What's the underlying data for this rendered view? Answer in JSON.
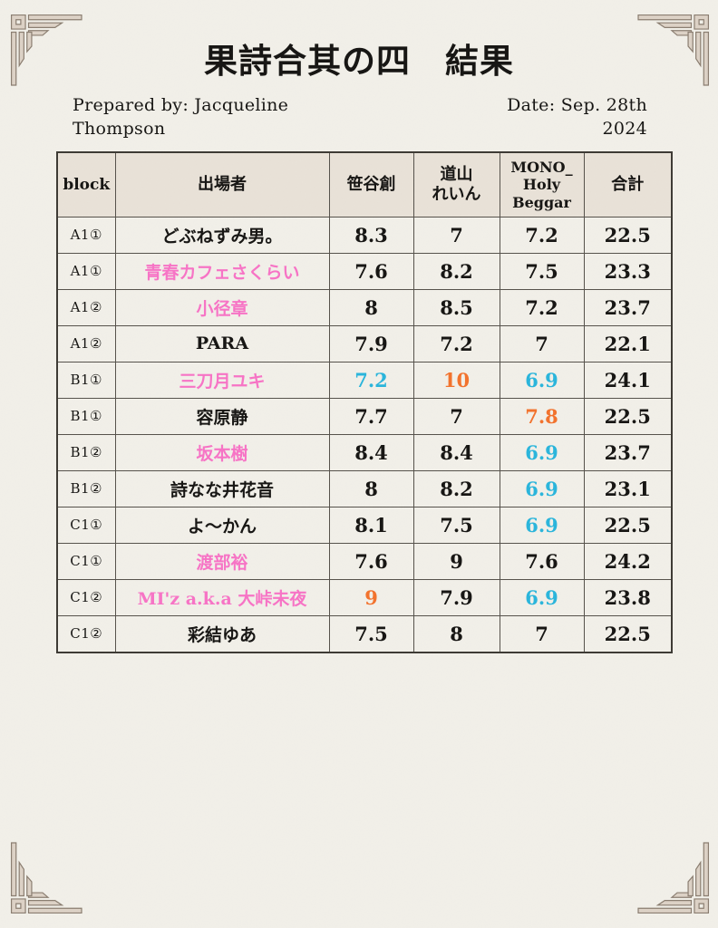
{
  "document": {
    "title": "果詩合其の四　結果",
    "prepared_by": "Prepared by: Jacqueline Thompson",
    "date": "Date: Sep. 28th 2024"
  },
  "colors": {
    "ink": "#151412",
    "pink": "#f873c6",
    "cyan": "#29b5dc",
    "orange": "#f3722c",
    "header_bg": "#e9e2d8",
    "page_bg": "#f2f0e9",
    "border": "#55514a",
    "ornament_fill": "#ddd2c6",
    "ornament_stroke": "#8a7d70"
  },
  "table": {
    "columns": [
      {
        "key": "block",
        "label": "block"
      },
      {
        "key": "name",
        "label": "出場者"
      },
      {
        "key": "judge1",
        "label": "笹谷創"
      },
      {
        "key": "judge2",
        "label": "道山\nれいん"
      },
      {
        "key": "judge3",
        "label": "MONO_\nHoly\nBeggar"
      },
      {
        "key": "total",
        "label": "合計"
      }
    ],
    "rows": [
      {
        "block": "A1①",
        "name": "どぶねずみ男。",
        "name_color": "ink",
        "scores": [
          [
            "8.3",
            "ink"
          ],
          [
            "7",
            "ink"
          ],
          [
            "7.2",
            "ink"
          ]
        ],
        "total": "22.5"
      },
      {
        "block": "A1①",
        "name": "青春カフェさくらい",
        "name_color": "pink",
        "scores": [
          [
            "7.6",
            "ink"
          ],
          [
            "8.2",
            "ink"
          ],
          [
            "7.5",
            "ink"
          ]
        ],
        "total": "23.3"
      },
      {
        "block": "A1②",
        "name": "小径章",
        "name_color": "pink",
        "scores": [
          [
            "8",
            "ink"
          ],
          [
            "8.5",
            "ink"
          ],
          [
            "7.2",
            "ink"
          ]
        ],
        "total": "23.7"
      },
      {
        "block": "A1②",
        "name": "PARA",
        "name_color": "ink",
        "scores": [
          [
            "7.9",
            "ink"
          ],
          [
            "7.2",
            "ink"
          ],
          [
            "7",
            "ink"
          ]
        ],
        "total": "22.1"
      },
      {
        "block": "B1①",
        "name": "三刀月ユキ",
        "name_color": "pink",
        "scores": [
          [
            "7.2",
            "cyan"
          ],
          [
            "10",
            "orange"
          ],
          [
            "6.9",
            "cyan"
          ]
        ],
        "total": "24.1"
      },
      {
        "block": "B1①",
        "name": "容原静",
        "name_color": "ink",
        "scores": [
          [
            "7.7",
            "ink"
          ],
          [
            "7",
            "ink"
          ],
          [
            "7.8",
            "orange"
          ]
        ],
        "total": "22.5"
      },
      {
        "block": "B1②",
        "name": "坂本樹",
        "name_color": "pink",
        "scores": [
          [
            "8.4",
            "ink"
          ],
          [
            "8.4",
            "ink"
          ],
          [
            "6.9",
            "cyan"
          ]
        ],
        "total": "23.7"
      },
      {
        "block": "B1②",
        "name": "詩なな井花音",
        "name_color": "ink",
        "scores": [
          [
            "8",
            "ink"
          ],
          [
            "8.2",
            "ink"
          ],
          [
            "6.9",
            "cyan"
          ]
        ],
        "total": "23.1"
      },
      {
        "block": "C1①",
        "name": "よ〜かん",
        "name_color": "ink",
        "scores": [
          [
            "8.1",
            "ink"
          ],
          [
            "7.5",
            "ink"
          ],
          [
            "6.9",
            "cyan"
          ]
        ],
        "total": "22.5"
      },
      {
        "block": "C1①",
        "name": "渡部裕",
        "name_color": "pink",
        "scores": [
          [
            "7.6",
            "ink"
          ],
          [
            "9",
            "ink"
          ],
          [
            "7.6",
            "ink"
          ]
        ],
        "total": "24.2"
      },
      {
        "block": "C1②",
        "name": "MI'z a.k.a 大峠未夜",
        "name_color": "pink",
        "scores": [
          [
            "9",
            "orange"
          ],
          [
            "7.9",
            "ink"
          ],
          [
            "6.9",
            "cyan"
          ]
        ],
        "total": "23.8"
      },
      {
        "block": "C1②",
        "name": "彩結ゆあ",
        "name_color": "ink",
        "scores": [
          [
            "7.5",
            "ink"
          ],
          [
            "8",
            "ink"
          ],
          [
            "7",
            "ink"
          ]
        ],
        "total": "22.5"
      }
    ]
  }
}
